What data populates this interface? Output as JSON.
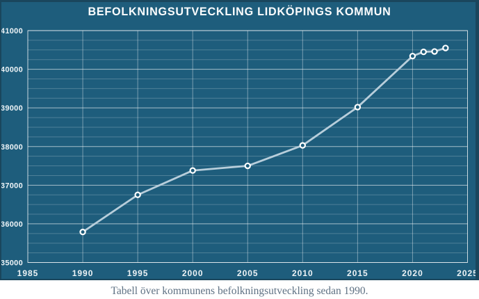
{
  "caption": "Tabell över kommunens befolkningsutveckling sedan 1990.",
  "colors": {
    "chart_background": "#1E5D7C",
    "frame_edge": "#1A465D",
    "line": "#B8CEDB",
    "marker_ring": "#FFFFFF",
    "grid_major": "rgba(255,255,255,0.60)",
    "grid_minor": "rgba(255,255,255,0.22)",
    "grid_vertical": "rgba(255,255,255,0.40)",
    "tick_label": "#EDF3F6",
    "title": "#FCFDFE",
    "caption_text": "#5E7183",
    "page_background": "#FFFFFF"
  },
  "chart_data": {
    "type": "line",
    "title": "BEFOLKNINGSUTVECKLING LIDKÖPINGS KOMMUN",
    "x": [
      1990,
      1995,
      2000,
      2005,
      2010,
      2015,
      2020,
      2021,
      2022,
      2023
    ],
    "y": [
      35790,
      36750,
      37380,
      37500,
      38030,
      39020,
      40340,
      40450,
      40460,
      40550
    ],
    "xlim": [
      1985,
      2025
    ],
    "ylim": [
      35000,
      41000
    ],
    "x_ticks": [
      1985,
      1990,
      1995,
      2000,
      2005,
      2010,
      2015,
      2020,
      2025
    ],
    "y_ticks": [
      35000,
      36000,
      37000,
      38000,
      39000,
      40000,
      41000
    ],
    "y_minor_step": 250,
    "grid": true,
    "legend": false,
    "xlabel": "",
    "ylabel": ""
  }
}
